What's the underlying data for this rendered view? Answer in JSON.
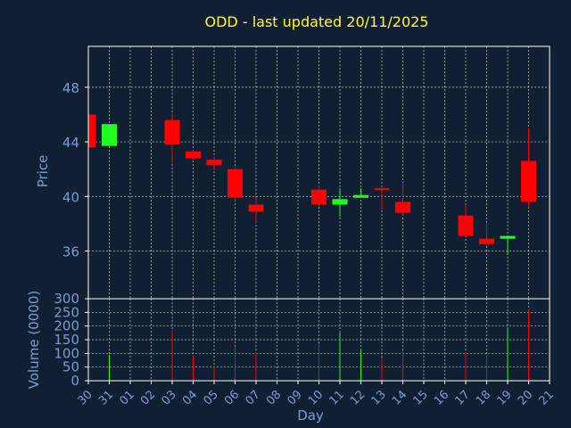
{
  "chart_data": {
    "type": "candlestick",
    "title": "ODD - last updated 20/11/2025",
    "xlabel": "Day",
    "price_panel": {
      "ylabel": "Price",
      "ylim": [
        32.5,
        51.0
      ],
      "yticks": [
        36,
        40,
        44,
        48
      ],
      "grid": true
    },
    "volume_panel": {
      "ylabel": "Volume (0000)",
      "ylim": [
        0,
        300
      ],
      "yticks": [
        0,
        50,
        100,
        150,
        200,
        250,
        300
      ],
      "grid": true
    },
    "x_tick_labels": [
      "30",
      "31",
      "01",
      "02",
      "03",
      "04",
      "05",
      "06",
      "07",
      "08",
      "09",
      "10",
      "11",
      "12",
      "13",
      "14",
      "15",
      "16",
      "17",
      "18",
      "19",
      "20",
      "21"
    ],
    "candles": [
      {
        "day": "30",
        "open": 46.0,
        "high": 46.0,
        "low": 43.5,
        "close": 43.6,
        "volume": 0
      },
      {
        "day": "31",
        "open": 43.7,
        "high": 45.3,
        "low": 43.6,
        "close": 45.3,
        "volume": 95
      },
      {
        "day": "03",
        "open": 45.6,
        "high": 46.0,
        "low": 42.4,
        "close": 43.8,
        "volume": 185
      },
      {
        "day": "04",
        "open": 43.3,
        "high": 43.4,
        "low": 42.7,
        "close": 42.8,
        "volume": 90
      },
      {
        "day": "05",
        "open": 42.7,
        "high": 42.9,
        "low": 41.9,
        "close": 42.3,
        "volume": 55
      },
      {
        "day": "06",
        "open": 42.0,
        "high": 42.2,
        "low": 39.7,
        "close": 39.9,
        "volume": 125
      },
      {
        "day": "07",
        "open": 39.4,
        "high": 39.9,
        "low": 38.1,
        "close": 38.9,
        "volume": 105
      },
      {
        "day": "10",
        "open": 40.5,
        "high": 40.8,
        "low": 39.3,
        "close": 39.4,
        "volume": 135
      },
      {
        "day": "11",
        "open": 39.4,
        "high": 40.6,
        "low": 38.5,
        "close": 39.8,
        "volume": 175
      },
      {
        "day": "12",
        "open": 39.9,
        "high": 40.6,
        "low": 39.9,
        "close": 40.1,
        "volume": 110
      },
      {
        "day": "13",
        "open": 40.6,
        "high": 40.7,
        "low": 39.0,
        "close": 40.5,
        "volume": 85
      },
      {
        "day": "14",
        "open": 39.6,
        "high": 41.0,
        "low": 38.6,
        "close": 38.8,
        "volume": 110
      },
      {
        "day": "17",
        "open": 38.6,
        "high": 39.4,
        "low": 37.1,
        "close": 37.1,
        "volume": 105
      },
      {
        "day": "18",
        "open": 36.9,
        "high": 38.0,
        "low": 36.4,
        "close": 36.5,
        "volume": 95
      },
      {
        "day": "19",
        "open": 36.9,
        "high": 37.1,
        "low": 35.7,
        "close": 37.1,
        "volume": 190
      },
      {
        "day": "20",
        "open": 42.6,
        "high": 45.0,
        "low": 39.2,
        "close": 39.6,
        "volume": 260
      }
    ],
    "colors": {
      "up": "#22ff22",
      "down": "#ff0000",
      "background": "#111f33",
      "title": "#ffff33",
      "axis_text": "#7d9ccf",
      "grid": "#ffffff"
    }
  }
}
